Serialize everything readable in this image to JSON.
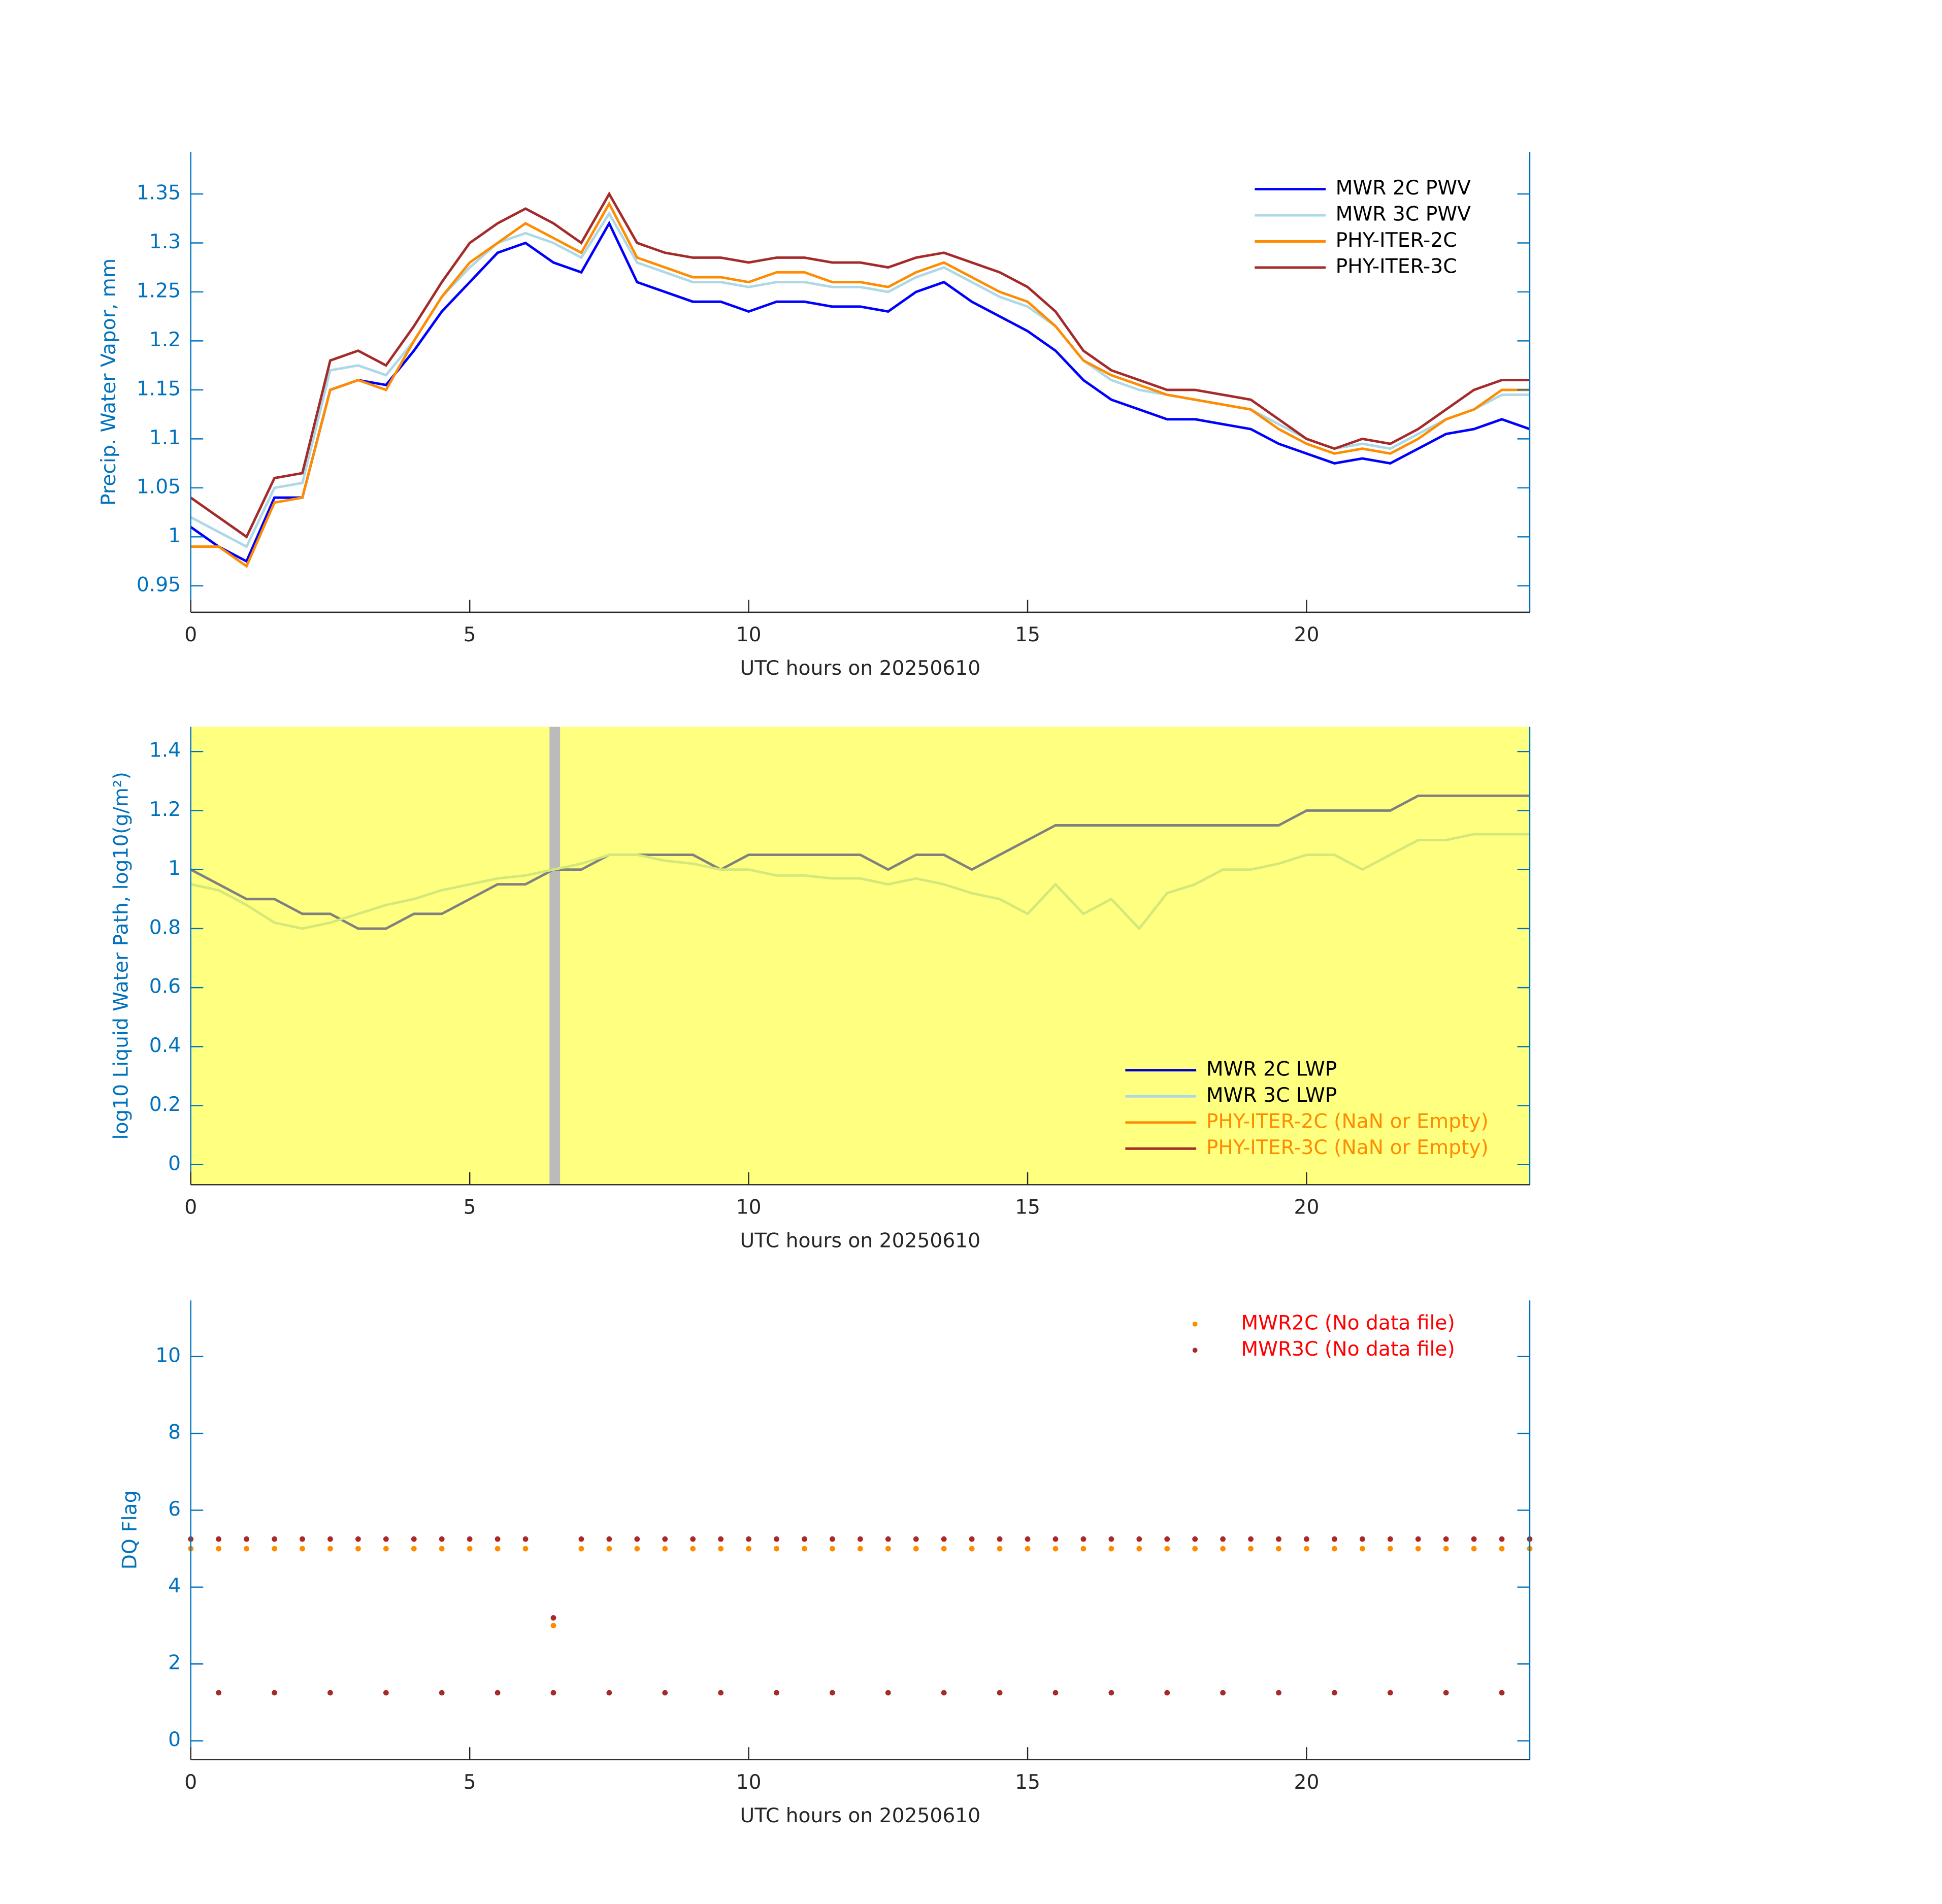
{
  "chart_data": [
    {
      "type": "line",
      "xlabel": "UTC hours on 20250610",
      "ylabel": "Precip. Water Vapor, mm",
      "x": [
        0,
        0.5,
        1,
        1.5,
        2,
        2.5,
        3,
        3.5,
        4,
        4.5,
        5,
        5.5,
        6,
        6.5,
        7,
        7.5,
        8,
        8.5,
        9,
        9.5,
        10,
        10.5,
        11,
        11.5,
        12,
        12.5,
        13,
        13.5,
        14,
        14.5,
        15,
        15.5,
        16,
        16.5,
        17,
        17.5,
        18,
        18.5,
        19,
        19.5,
        20,
        20.5,
        21,
        21.5,
        22,
        22.5,
        23,
        23.5,
        24
      ],
      "series": [
        {
          "name": "MWR 2C PWV",
          "color": "#0000ff",
          "values": [
            1.01,
            0.99,
            0.975,
            1.04,
            1.04,
            1.15,
            1.16,
            1.155,
            1.19,
            1.23,
            1.26,
            1.29,
            1.3,
            1.28,
            1.27,
            1.32,
            1.26,
            1.25,
            1.24,
            1.24,
            1.23,
            1.24,
            1.24,
            1.235,
            1.235,
            1.23,
            1.25,
            1.26,
            1.24,
            1.225,
            1.21,
            1.19,
            1.16,
            1.14,
            1.13,
            1.12,
            1.12,
            1.115,
            1.11,
            1.095,
            1.085,
            1.075,
            1.08,
            1.075,
            1.09,
            1.105,
            1.11,
            1.12,
            1.11
          ]
        },
        {
          "name": "MWR 3C PWV",
          "color": "#add8e6",
          "values": [
            1.02,
            1.005,
            0.99,
            1.05,
            1.055,
            1.17,
            1.175,
            1.165,
            1.2,
            1.245,
            1.275,
            1.3,
            1.31,
            1.3,
            1.285,
            1.33,
            1.28,
            1.27,
            1.26,
            1.26,
            1.255,
            1.26,
            1.26,
            1.255,
            1.255,
            1.25,
            1.265,
            1.275,
            1.26,
            1.245,
            1.235,
            1.215,
            1.18,
            1.16,
            1.15,
            1.145,
            1.14,
            1.135,
            1.13,
            1.115,
            1.1,
            1.09,
            1.095,
            1.09,
            1.105,
            1.12,
            1.13,
            1.145,
            1.145
          ]
        },
        {
          "name": "PHY-ITER-2C",
          "color": "#ff8c00",
          "values": [
            0.99,
            0.99,
            0.97,
            1.035,
            1.04,
            1.15,
            1.16,
            1.15,
            1.2,
            1.245,
            1.28,
            1.3,
            1.32,
            1.305,
            1.29,
            1.34,
            1.285,
            1.275,
            1.265,
            1.265,
            1.26,
            1.27,
            1.27,
            1.26,
            1.26,
            1.255,
            1.27,
            1.28,
            1.265,
            1.25,
            1.24,
            1.215,
            1.18,
            1.165,
            1.155,
            1.145,
            1.14,
            1.135,
            1.13,
            1.11,
            1.095,
            1.085,
            1.09,
            1.085,
            1.1,
            1.12,
            1.13,
            1.15,
            1.15
          ]
        },
        {
          "name": "PHY-ITER-3C",
          "color": "#a52a2a",
          "values": [
            1.04,
            1.02,
            1.0,
            1.06,
            1.065,
            1.18,
            1.19,
            1.175,
            1.215,
            1.26,
            1.3,
            1.32,
            1.335,
            1.32,
            1.3,
            1.35,
            1.3,
            1.29,
            1.285,
            1.285,
            1.28,
            1.285,
            1.285,
            1.28,
            1.28,
            1.275,
            1.285,
            1.29,
            1.28,
            1.27,
            1.255,
            1.23,
            1.19,
            1.17,
            1.16,
            1.15,
            1.15,
            1.145,
            1.14,
            1.12,
            1.1,
            1.09,
            1.1,
            1.095,
            1.11,
            1.13,
            1.15,
            1.16,
            1.16
          ]
        }
      ],
      "xlim": [
        0,
        24
      ],
      "xticks": [
        0,
        5,
        10,
        15,
        20
      ],
      "ylim": [
        0.923,
        1.393
      ],
      "yticks": [
        0.95,
        1,
        1.05,
        1.1,
        1.15,
        1.2,
        1.25,
        1.3,
        1.35
      ],
      "legend": "upper right"
    },
    {
      "type": "line",
      "xlabel": "UTC hours on 20250610",
      "ylabel": "log10 Liquid Water Path, log10(g/m²)",
      "background": "#ffff80",
      "shade": [
        6.43,
        6.62
      ],
      "shade_color": "#bbbbbb",
      "x": [
        0,
        0.5,
        1,
        1.5,
        2,
        2.5,
        3,
        3.5,
        4,
        4.5,
        5,
        5.5,
        6,
        6.5,
        7,
        7.5,
        8,
        8.5,
        9,
        9.5,
        10,
        10.5,
        11,
        11.5,
        12,
        12.5,
        13,
        13.5,
        14,
        14.5,
        15,
        15.5,
        16,
        16.5,
        17,
        17.5,
        18,
        18.5,
        19,
        19.5,
        20,
        20.5,
        21,
        21.5,
        22,
        22.5,
        23,
        23.5,
        24
      ],
      "series": [
        {
          "name": "MWR 2C LWP",
          "color": "#0000cc",
          "plot_color": "#808080",
          "values": [
            1.0,
            0.95,
            0.9,
            0.9,
            0.85,
            0.85,
            0.8,
            0.8,
            0.85,
            0.85,
            0.9,
            0.95,
            0.95,
            1.0,
            1.0,
            1.05,
            1.05,
            1.05,
            1.05,
            1.0,
            1.05,
            1.05,
            1.05,
            1.05,
            1.05,
            1.0,
            1.05,
            1.05,
            1.0,
            1.05,
            1.1,
            1.15,
            1.15,
            1.15,
            1.15,
            1.15,
            1.15,
            1.15,
            1.15,
            1.15,
            1.2,
            1.2,
            1.2,
            1.2,
            1.25,
            1.25,
            1.25,
            1.25,
            1.25
          ]
        },
        {
          "name": "MWR 3C LWP",
          "color": "#add8e6",
          "plot_color": "#d4e87a",
          "values": [
            0.95,
            0.93,
            0.88,
            0.82,
            0.8,
            0.82,
            0.85,
            0.88,
            0.9,
            0.93,
            0.95,
            0.97,
            0.98,
            1.0,
            1.02,
            1.05,
            1.05,
            1.03,
            1.02,
            1.0,
            1.0,
            0.98,
            0.98,
            0.97,
            0.97,
            0.95,
            0.97,
            0.95,
            0.92,
            0.9,
            0.85,
            0.95,
            0.85,
            0.9,
            0.8,
            0.92,
            0.95,
            1.0,
            1.0,
            1.02,
            1.05,
            1.05,
            1.0,
            1.05,
            1.1,
            1.1,
            1.12,
            1.12,
            1.12
          ]
        },
        {
          "name": "PHY-ITER-2C (NaN or Empty)",
          "color": "#ff8c00",
          "label_color": "#ff8c00"
        },
        {
          "name": "PHY-ITER-3C (NaN or Empty)",
          "color": "#a52a2a",
          "label_color": "#ff8c00"
        }
      ],
      "xlim": [
        0,
        24
      ],
      "xticks": [
        0,
        5,
        10,
        15,
        20
      ],
      "ylim": [
        -0.068,
        1.484
      ],
      "yticks": [
        0,
        0.2,
        0.4,
        0.6,
        0.8,
        1,
        1.2,
        1.4
      ],
      "legend": "lower right"
    },
    {
      "type": "scatter",
      "xlabel": "UTC hours on 20250610",
      "ylabel": "DQ Flag",
      "series": [
        {
          "name": "MWR2C (No data file)",
          "color": "#ff8c00",
          "label_color": "#ff0000",
          "x": [
            0,
            0.5,
            1,
            1.5,
            2,
            2.5,
            3,
            3.5,
            4,
            4.5,
            5,
            5.5,
            6,
            6.5,
            7,
            7.5,
            8,
            8.5,
            9,
            9.5,
            10,
            10.5,
            11,
            11.5,
            12,
            12.5,
            13,
            13.5,
            14,
            14.5,
            15,
            15.5,
            16,
            16.5,
            17,
            17.5,
            18,
            18.5,
            19,
            19.5,
            20,
            20.5,
            21,
            21.5,
            22,
            22.5,
            23,
            23.5,
            24
          ],
          "values": [
            5,
            5,
            5,
            5,
            5,
            5,
            5,
            5,
            5,
            5,
            5,
            5,
            5,
            3,
            5,
            5,
            5,
            5,
            5,
            5,
            5,
            5,
            5,
            5,
            5,
            5,
            5,
            5,
            5,
            5,
            5,
            5,
            5,
            5,
            5,
            5,
            5,
            5,
            5,
            5,
            5,
            5,
            5,
            5,
            5,
            5,
            5,
            5,
            5
          ]
        },
        {
          "name": "MWR3C (No data file)",
          "color": "#a52a2a",
          "label_color": "#ff0000",
          "x": [
            0,
            0.5,
            1,
            1.5,
            2,
            2.5,
            3,
            3.5,
            4,
            4.5,
            5,
            5.5,
            6,
            6.5,
            7,
            7.5,
            8,
            8.5,
            9,
            9.5,
            10,
            10.5,
            11,
            11.5,
            12,
            12.5,
            13,
            13.5,
            14,
            14.5,
            15,
            15.5,
            16,
            16.5,
            17,
            17.5,
            18,
            18.5,
            19,
            19.5,
            20,
            20.5,
            21,
            21.5,
            22,
            22.5,
            23,
            23.5,
            24,
            0.5,
            1.5,
            2.5,
            3.5,
            4.5,
            5.5,
            6.5,
            7.5,
            8.5,
            9.5,
            10.5,
            11.5,
            12.5,
            13.5,
            14.5,
            15.5,
            16.5,
            17.5,
            18.5,
            19.5,
            20.5,
            21.5,
            22.5,
            23.5
          ],
          "values": [
            5.25,
            5.25,
            5.25,
            5.25,
            5.25,
            5.25,
            5.25,
            5.25,
            5.25,
            5.25,
            5.25,
            5.25,
            5.25,
            3.2,
            5.25,
            5.25,
            5.25,
            5.25,
            5.25,
            5.25,
            5.25,
            5.25,
            5.25,
            5.25,
            5.25,
            5.25,
            5.25,
            5.25,
            5.25,
            5.25,
            5.25,
            5.25,
            5.25,
            5.25,
            5.25,
            5.25,
            5.25,
            5.25,
            5.25,
            5.25,
            5.25,
            5.25,
            5.25,
            5.25,
            5.25,
            5.25,
            5.25,
            5.25,
            5.25,
            1.25,
            1.25,
            1.25,
            1.25,
            1.25,
            1.25,
            1.25,
            1.25,
            1.25,
            1.25,
            1.25,
            1.25,
            1.25,
            1.25,
            1.25,
            1.25,
            1.25,
            1.25,
            1.25,
            1.25,
            1.25,
            1.25,
            1.25,
            1.25
          ]
        }
      ],
      "xlim": [
        0,
        24
      ],
      "xticks": [
        0,
        5,
        10,
        15,
        20
      ],
      "ylim": [
        -0.49,
        11.46
      ],
      "yticks": [
        0,
        2,
        4,
        6,
        8,
        10
      ],
      "legend": "upper right"
    }
  ]
}
